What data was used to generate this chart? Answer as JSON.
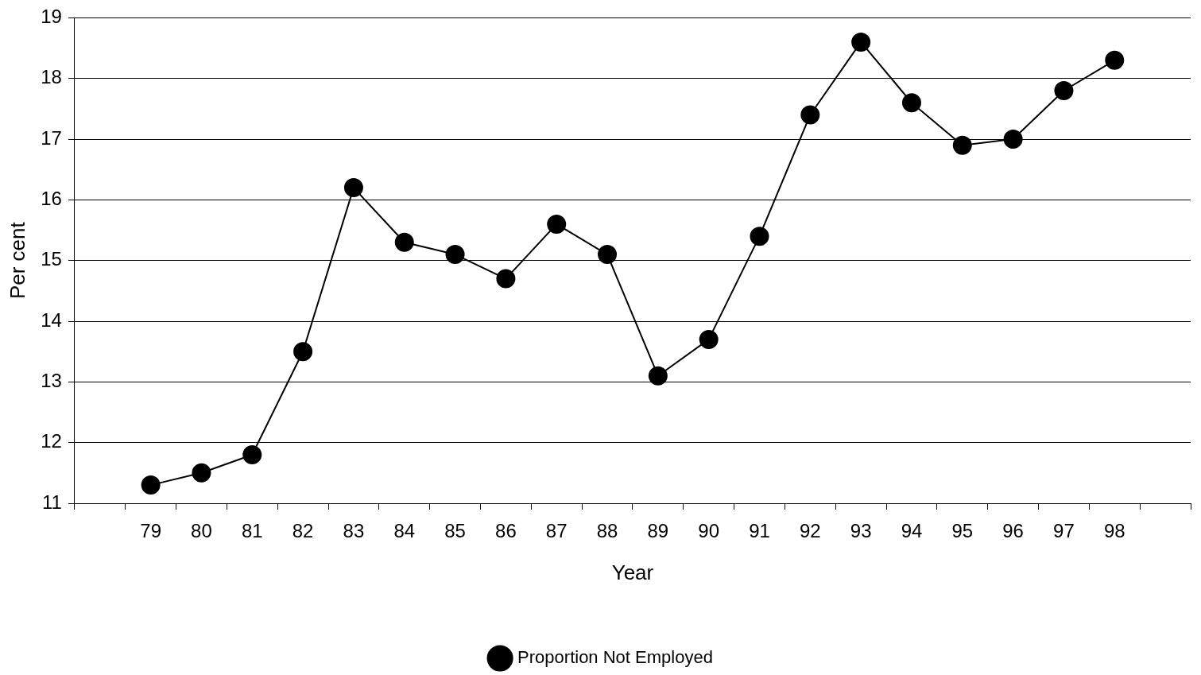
{
  "chart_data": {
    "type": "line",
    "xlabel": "Year",
    "ylabel": "Per cent",
    "categories": [
      null,
      "79",
      "80",
      "81",
      "82",
      "83",
      "84",
      "85",
      "86",
      "87",
      "88",
      "89",
      "90",
      "91",
      "92",
      "93",
      "94",
      "95",
      "96",
      "97",
      "98",
      null
    ],
    "series": [
      {
        "name": "Proportion Not Employed",
        "color": "#000000",
        "values": [
          null,
          11.3,
          11.5,
          11.8,
          13.5,
          16.2,
          15.3,
          15.1,
          14.7,
          15.6,
          15.1,
          13.1,
          13.7,
          15.4,
          17.4,
          18.6,
          17.6,
          16.9,
          17.0,
          17.8,
          18.3,
          null
        ]
      }
    ],
    "ylim": [
      11,
      19
    ],
    "yticks": [
      11,
      12,
      13,
      14,
      15,
      16,
      17,
      18,
      19
    ],
    "grid": "y",
    "legend": "bottom",
    "marker": "circle",
    "line_style": "solid"
  }
}
